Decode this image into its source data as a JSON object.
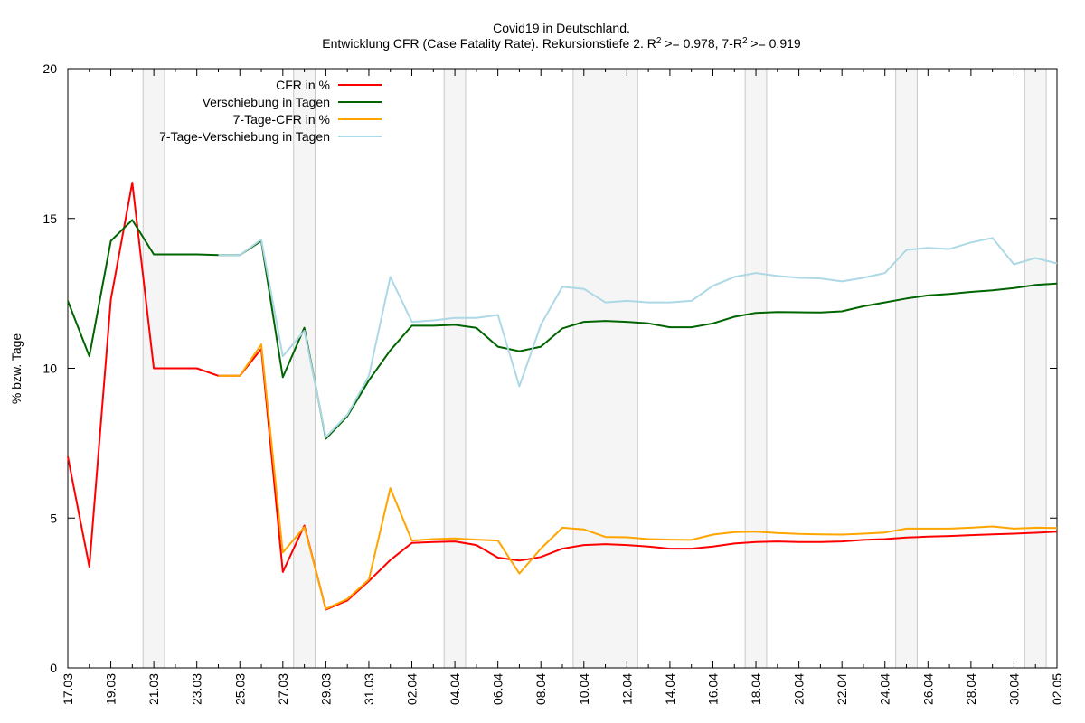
{
  "chart_data": {
    "type": "line",
    "title": "Covid19 in Deutschland.",
    "subtitle": {
      "part1": "Entwicklung CFR (Case Fatality Rate). Rekursionstiefe 2. R",
      "sup1": "2",
      "part2": " >= 0.978, 7-R",
      "sup2": "2",
      "part3": " >= 0.919"
    },
    "ylabel": "% bzw. Tage",
    "xlabel": "",
    "ylim": [
      0,
      20
    ],
    "yticks": [
      "0",
      "5",
      "10",
      "15",
      "20"
    ],
    "x": [
      "17.03",
      "18.03",
      "19.03",
      "20.03",
      "21.03",
      "22.03",
      "23.03",
      "24.03",
      "25.03",
      "26.03",
      "27.03",
      "28.03",
      "29.03",
      "30.03",
      "31.03",
      "01.04",
      "02.04",
      "03.04",
      "04.04",
      "05.04",
      "06.04",
      "07.04",
      "08.04",
      "09.04",
      "10.04",
      "11.04",
      "12.04",
      "13.04",
      "14.04",
      "15.04",
      "16.04",
      "17.04",
      "18.04",
      "19.04",
      "20.04",
      "21.04",
      "22.04",
      "23.04",
      "24.04",
      "25.04",
      "26.04",
      "27.04",
      "28.04",
      "29.04",
      "30.04",
      "01.05",
      "02.05"
    ],
    "xtick_labels": [
      "17.03",
      "19.03",
      "21.03",
      "23.03",
      "25.03",
      "27.03",
      "29.03",
      "31.03",
      "02.04",
      "04.04",
      "06.04",
      "08.04",
      "10.04",
      "12.04",
      "14.04",
      "16.04",
      "18.04",
      "20.04",
      "22.04",
      "24.04",
      "26.04",
      "28.04",
      "30.04",
      "02.05"
    ],
    "weekend_shading": [
      [
        "20.03",
        "22.03"
      ],
      [
        "27.03",
        "29.03"
      ],
      [
        "03.04",
        "05.04"
      ],
      [
        "09.04",
        "13.04"
      ],
      [
        "17.04",
        "19.04"
      ],
      [
        "24.04",
        "26.04"
      ],
      [
        "30.04",
        "02.05"
      ]
    ],
    "grid": false,
    "legend_position": "top-left",
    "series": [
      {
        "name": "CFR in %",
        "color": "#ff0000",
        "values": [
          7.05,
          3.38,
          12.3,
          16.2,
          10.0,
          10.0,
          10.0,
          9.75,
          9.75,
          10.65,
          3.2,
          4.75,
          1.95,
          2.25,
          2.9,
          3.6,
          4.17,
          4.2,
          4.22,
          4.1,
          3.68,
          3.58,
          3.7,
          3.98,
          4.1,
          4.13,
          4.1,
          4.05,
          3.98,
          3.98,
          4.05,
          4.15,
          4.2,
          4.22,
          4.2,
          4.2,
          4.22,
          4.27,
          4.3,
          4.35,
          4.38,
          4.4,
          4.43,
          4.46,
          4.48,
          4.51,
          4.55
        ]
      },
      {
        "name": "Verschiebung in Tagen",
        "color": "#006400",
        "values": [
          12.25,
          10.4,
          14.25,
          14.95,
          13.8,
          13.8,
          13.8,
          13.78,
          13.78,
          14.25,
          9.7,
          11.35,
          7.65,
          8.4,
          9.6,
          10.6,
          11.42,
          11.42,
          11.45,
          11.35,
          10.72,
          10.57,
          10.72,
          11.33,
          11.55,
          11.58,
          11.55,
          11.5,
          11.37,
          11.37,
          11.5,
          11.72,
          11.85,
          11.88,
          11.87,
          11.86,
          11.9,
          12.07,
          12.2,
          12.33,
          12.43,
          12.48,
          12.55,
          12.6,
          12.68,
          12.78,
          12.83
        ]
      },
      {
        "name": "7-Tage-CFR in %",
        "color": "#ffa500",
        "values": [
          null,
          null,
          null,
          null,
          null,
          null,
          null,
          9.75,
          9.75,
          10.8,
          3.85,
          4.7,
          1.97,
          2.3,
          2.95,
          6.0,
          4.25,
          4.3,
          4.32,
          4.28,
          4.25,
          3.15,
          3.98,
          4.68,
          4.62,
          4.37,
          4.36,
          4.3,
          4.28,
          4.27,
          4.45,
          4.53,
          4.55,
          4.5,
          4.47,
          4.46,
          4.45,
          4.48,
          4.52,
          4.65,
          4.65,
          4.65,
          4.68,
          4.72,
          4.65,
          4.68,
          4.67
        ]
      },
      {
        "name": "7-Tage-Verschiebung in Tagen",
        "color": "#add8e6",
        "values": [
          null,
          null,
          null,
          null,
          null,
          null,
          null,
          13.78,
          13.78,
          14.3,
          10.4,
          11.25,
          7.7,
          8.45,
          9.75,
          13.05,
          11.55,
          11.6,
          11.68,
          11.68,
          11.78,
          9.4,
          11.45,
          12.72,
          12.65,
          12.2,
          12.25,
          12.2,
          12.2,
          12.25,
          12.75,
          13.05,
          13.18,
          13.08,
          13.02,
          13.0,
          12.9,
          13.02,
          13.18,
          13.95,
          14.02,
          13.98,
          14.2,
          14.35,
          13.47,
          13.68,
          13.5
        ]
      }
    ]
  }
}
